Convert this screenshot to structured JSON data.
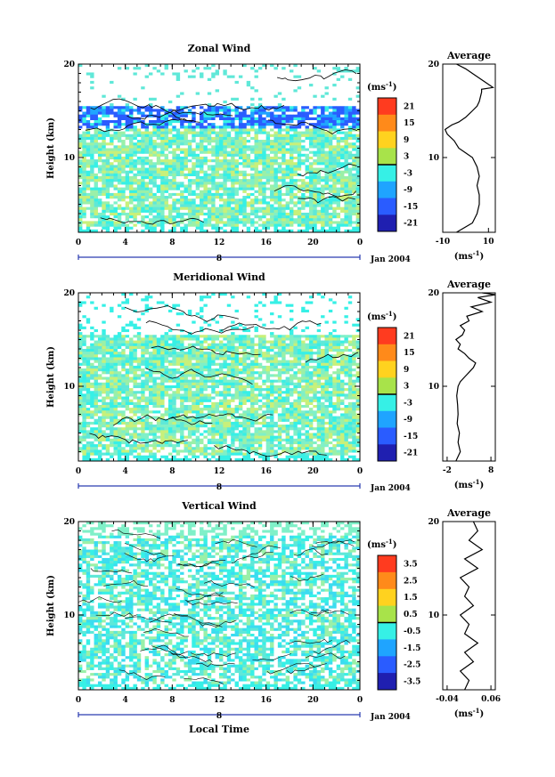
{
  "chart_data": [
    {
      "type": "heatmap",
      "title": "Zonal Wind",
      "ylabel": "Height (km)",
      "x_ticks": [
        "0",
        "4",
        "8",
        "12",
        "16",
        "20",
        "0"
      ],
      "y_ticks": [
        "20",
        "10"
      ],
      "date_tick": "8",
      "date_label": "Jan 2004",
      "xlim": [
        0,
        24
      ],
      "ylim": [
        2,
        20
      ],
      "colorbar": {
        "unit": "(ms",
        "unit_exp": "-1",
        "unit_close": ")",
        "labels": [
          "21",
          "15",
          "9",
          "3",
          "-3",
          "-9",
          "-15",
          "-21"
        ]
      },
      "profile": {
        "title": "Average",
        "y_ticks": [
          "20",
          "10"
        ],
        "x_ticks": [
          "-10",
          "10"
        ],
        "xlim": [
          -10,
          13
        ],
        "unit": "(ms",
        "unit_exp": "-1",
        "unit_close": ")",
        "points": [
          [
            -4,
            2
          ],
          [
            3,
            3
          ],
          [
            5,
            4
          ],
          [
            6,
            5
          ],
          [
            6,
            6
          ],
          [
            5,
            7
          ],
          [
            6,
            8
          ],
          [
            5,
            9
          ],
          [
            3,
            10
          ],
          [
            0,
            10.5
          ],
          [
            -3,
            11
          ],
          [
            -5,
            11.8
          ],
          [
            -8,
            12.5
          ],
          [
            -9,
            13
          ],
          [
            -6,
            13.5
          ],
          [
            -3,
            13.8
          ],
          [
            0,
            14.3
          ],
          [
            3,
            15
          ],
          [
            5,
            15.5
          ],
          [
            6,
            16
          ],
          [
            6.5,
            16.5
          ],
          [
            7,
            17
          ],
          [
            7,
            17.3
          ],
          [
            12,
            17.5
          ],
          [
            9,
            18
          ],
          [
            6,
            18.5
          ],
          [
            3,
            19
          ],
          [
            0,
            19.5
          ],
          [
            -4,
            20
          ]
        ]
      }
    },
    {
      "type": "heatmap",
      "title": "Meridional Wind",
      "ylabel": "Height (km)",
      "x_ticks": [
        "0",
        "4",
        "8",
        "12",
        "16",
        "20",
        "0"
      ],
      "y_ticks": [
        "20",
        "10"
      ],
      "date_tick": "8",
      "date_label": "Jan 2004",
      "xlim": [
        0,
        24
      ],
      "ylim": [
        2,
        20
      ],
      "colorbar": {
        "unit": "(ms",
        "unit_exp": "-1",
        "unit_close": ")",
        "labels": [
          "21",
          "15",
          "9",
          "3",
          "-3",
          "-9",
          "-15",
          "-21"
        ]
      },
      "profile": {
        "title": "Average",
        "y_ticks": [
          "20",
          "10"
        ],
        "x_ticks": [
          "-2",
          "8"
        ],
        "xlim": [
          -3,
          9
        ],
        "unit": "(ms",
        "unit_exp": "-1",
        "unit_close": ")",
        "points": [
          [
            0,
            2
          ],
          [
            1,
            3
          ],
          [
            0.5,
            4
          ],
          [
            0.8,
            5
          ],
          [
            0.3,
            6
          ],
          [
            0.5,
            7
          ],
          [
            0.4,
            8
          ],
          [
            0.2,
            9
          ],
          [
            0.5,
            10
          ],
          [
            1,
            10.5
          ],
          [
            2,
            11
          ],
          [
            3,
            11.5
          ],
          [
            4,
            12
          ],
          [
            4.5,
            12.5
          ],
          [
            3,
            13
          ],
          [
            2,
            13.5
          ],
          [
            0.5,
            14
          ],
          [
            1,
            14.5
          ],
          [
            0,
            15
          ],
          [
            1.5,
            15.5
          ],
          [
            2,
            16
          ],
          [
            1,
            16.5
          ],
          [
            3,
            17
          ],
          [
            2.5,
            17.5
          ],
          [
            6,
            18
          ],
          [
            3.5,
            18.5
          ],
          [
            8,
            19
          ],
          [
            5,
            19.5
          ],
          [
            9,
            19.8
          ],
          [
            6,
            20
          ]
        ]
      }
    },
    {
      "type": "heatmap",
      "title": "Vertical Wind",
      "ylabel": "Height (km)",
      "xlabel": "Local Time",
      "x_ticks": [
        "0",
        "4",
        "8",
        "12",
        "16",
        "20",
        "0"
      ],
      "y_ticks": [
        "20",
        "10"
      ],
      "date_tick": "8",
      "date_label": "Jan 2004",
      "xlim": [
        0,
        24
      ],
      "ylim": [
        2,
        20
      ],
      "colorbar": {
        "unit": "(ms",
        "unit_exp": "-1",
        "unit_close": ")",
        "labels": [
          "3.5",
          "2.5",
          "1.5",
          "0.5",
          "-0.5",
          "-1.5",
          "-2.5",
          "-3.5"
        ]
      },
      "profile": {
        "title": "Average",
        "y_ticks": [
          "20",
          "10"
        ],
        "x_ticks": [
          "-0.04",
          "0.06"
        ],
        "xlim": [
          -0.05,
          0.07
        ],
        "unit": "(ms",
        "unit_exp": "-1",
        "unit_close": ")",
        "points": [
          [
            0.0,
            2
          ],
          [
            0.01,
            3
          ],
          [
            -0.01,
            4
          ],
          [
            0.02,
            5
          ],
          [
            0.0,
            6
          ],
          [
            0.03,
            7
          ],
          [
            0.0,
            8
          ],
          [
            0.01,
            9
          ],
          [
            -0.01,
            10
          ],
          [
            0.02,
            11
          ],
          [
            0.0,
            12
          ],
          [
            0.01,
            13
          ],
          [
            -0.01,
            14
          ],
          [
            0.03,
            15
          ],
          [
            0.0,
            16
          ],
          [
            0.04,
            17
          ],
          [
            0.01,
            18
          ],
          [
            0.03,
            19
          ],
          [
            0.02,
            20
          ]
        ]
      }
    }
  ]
}
